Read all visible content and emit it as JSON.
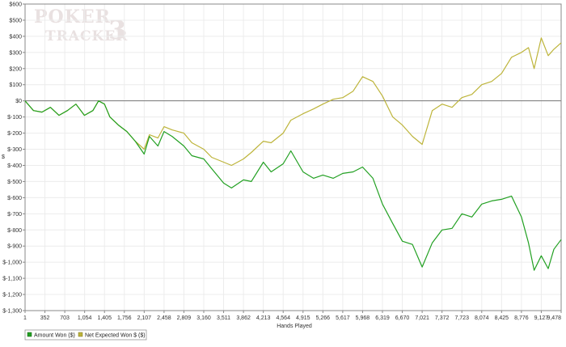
{
  "chart_data": {
    "type": "line",
    "title": "",
    "xlabel": "Hands Played",
    "ylabel": "$",
    "xlim": [
      1,
      9478
    ],
    "ylim": [
      -1300,
      600
    ],
    "grid": true,
    "legend_position": "bottom-left",
    "watermark": [
      "POKER",
      "TRACKER",
      "3"
    ],
    "x_ticks": [
      "1",
      "352",
      "703",
      "1,054",
      "1,405",
      "1,756",
      "2,107",
      "2,458",
      "2,809",
      "3,160",
      "3,511",
      "3,862",
      "4,213",
      "4,564",
      "4,915",
      "5,266",
      "5,617",
      "5,968",
      "6,319",
      "6,670",
      "7,021",
      "7,372",
      "7,723",
      "8,074",
      "8,425",
      "8,776",
      "9,127",
      "9,478"
    ],
    "x_tick_values": [
      1,
      352,
      703,
      1054,
      1405,
      1756,
      2107,
      2458,
      2809,
      3160,
      3511,
      3862,
      4213,
      4564,
      4915,
      5266,
      5617,
      5968,
      6319,
      6670,
      7021,
      7372,
      7723,
      8074,
      8425,
      8776,
      9127,
      9478
    ],
    "y_ticks": [
      "$600",
      "$500",
      "$400",
      "$300",
      "$200",
      "$100",
      "$0",
      "$-100",
      "$-200",
      "$-300",
      "$-400",
      "$-500",
      "$-600",
      "$-700",
      "$-800",
      "$-900",
      "$-1,000",
      "$-1,100",
      "$-1,200",
      "$-1,300"
    ],
    "y_tick_values": [
      600,
      500,
      400,
      300,
      200,
      100,
      0,
      -100,
      -200,
      -300,
      -400,
      -500,
      -600,
      -700,
      -800,
      -900,
      -1000,
      -1100,
      -1200,
      -1300
    ],
    "series": [
      {
        "name": "Amount Won ($)",
        "color": "#22a022",
        "x": [
          1,
          150,
          300,
          450,
          600,
          750,
          900,
          1050,
          1200,
          1300,
          1405,
          1500,
          1650,
          1800,
          1950,
          2107,
          2200,
          2350,
          2458,
          2600,
          2809,
          2950,
          3160,
          3300,
          3511,
          3650,
          3862,
          4000,
          4213,
          4350,
          4564,
          4700,
          4915,
          5100,
          5266,
          5450,
          5617,
          5800,
          5968,
          6150,
          6319,
          6500,
          6670,
          6850,
          7021,
          7200,
          7372,
          7550,
          7723,
          7900,
          8074,
          8250,
          8425,
          8600,
          8776,
          8900,
          9000,
          9127,
          9250,
          9350,
          9478
        ],
        "y": [
          0,
          -60,
          -70,
          -40,
          -90,
          -60,
          -20,
          -90,
          -60,
          0,
          -20,
          -100,
          -150,
          -190,
          -250,
          -330,
          -220,
          -280,
          -190,
          -220,
          -280,
          -340,
          -360,
          -420,
          -510,
          -540,
          -490,
          -500,
          -380,
          -440,
          -390,
          -310,
          -440,
          -480,
          -460,
          -480,
          -450,
          -440,
          -410,
          -480,
          -640,
          -760,
          -870,
          -890,
          -1030,
          -880,
          -800,
          -790,
          -700,
          -720,
          -640,
          -620,
          -610,
          -590,
          -720,
          -880,
          -1050,
          -960,
          -1040,
          -920,
          -860
        ]
      },
      {
        "name": "Net Expected Won $ ($)",
        "color": "#bdb43a",
        "x": [
          1,
          150,
          300,
          450,
          600,
          750,
          900,
          1050,
          1200,
          1300,
          1405,
          1500,
          1650,
          1800,
          1950,
          2107,
          2200,
          2350,
          2458,
          2600,
          2809,
          2950,
          3160,
          3300,
          3511,
          3650,
          3862,
          4000,
          4213,
          4350,
          4564,
          4700,
          4915,
          5100,
          5266,
          5450,
          5617,
          5800,
          5968,
          6150,
          6319,
          6500,
          6670,
          6850,
          7021,
          7200,
          7372,
          7550,
          7723,
          7900,
          8074,
          8250,
          8425,
          8600,
          8776,
          8900,
          9000,
          9127,
          9250,
          9350,
          9478
        ],
        "y": [
          0,
          -60,
          -70,
          -40,
          -90,
          -60,
          -20,
          -90,
          -60,
          0,
          -20,
          -100,
          -150,
          -190,
          -250,
          -300,
          -210,
          -230,
          -160,
          -180,
          -200,
          -260,
          -300,
          -350,
          -380,
          -400,
          -360,
          -320,
          -250,
          -260,
          -200,
          -120,
          -80,
          -50,
          -20,
          10,
          20,
          60,
          150,
          120,
          30,
          -100,
          -150,
          -220,
          -270,
          -60,
          -20,
          -40,
          20,
          40,
          100,
          120,
          170,
          270,
          300,
          330,
          200,
          390,
          280,
          320,
          360
        ]
      }
    ]
  }
}
